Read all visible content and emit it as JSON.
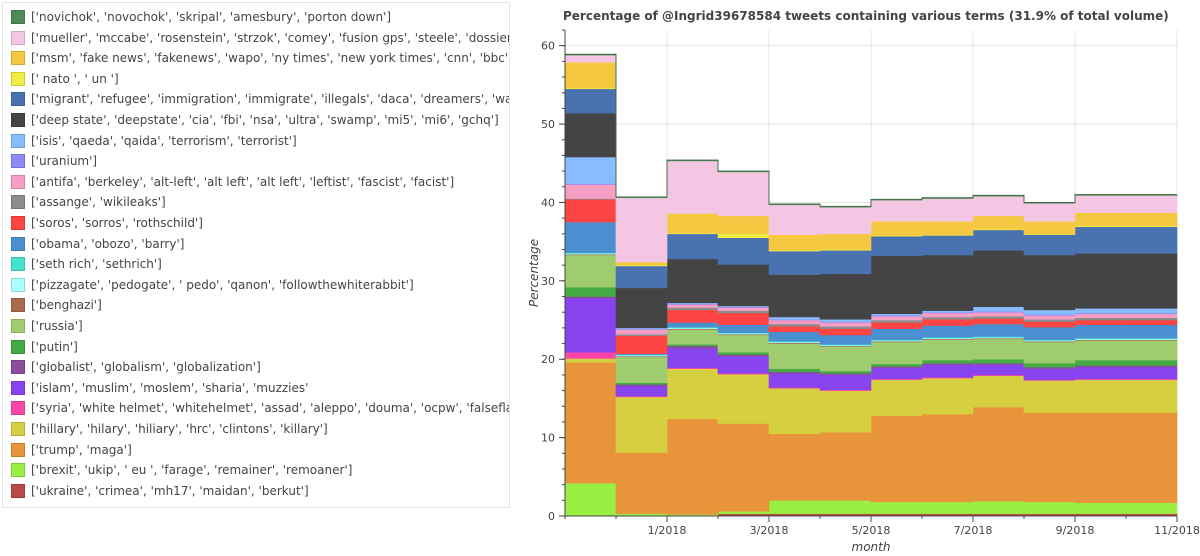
{
  "chart_data": {
    "type": "area",
    "title": "Percentage of @Ingrid39678584 tweets containing various terms (31.9% of total volume)",
    "xlabel": "month",
    "ylabel": "Percentage",
    "ylim": [
      0,
      62
    ],
    "xlim": [
      "2017-11",
      "2018-11"
    ],
    "yticks": [
      0,
      10,
      20,
      30,
      40,
      50,
      60
    ],
    "xticks": [
      {
        "month": "2018-01",
        "label": "1/2018"
      },
      {
        "month": "2018-03",
        "label": "3/2018"
      },
      {
        "month": "2018-05",
        "label": "5/2018"
      },
      {
        "month": "2018-07",
        "label": "7/2018"
      },
      {
        "month": "2018-09",
        "label": "9/2018"
      },
      {
        "month": "2018-11",
        "label": "11/2018"
      }
    ],
    "grid": true,
    "legend_placement": "left",
    "months": [
      "2017-11",
      "2017-12",
      "2018-01",
      "2018-02",
      "2018-03",
      "2018-04",
      "2018-05",
      "2018-06",
      "2018-07",
      "2018-08",
      "2018-09",
      "2018-10"
    ],
    "series": [
      {
        "name": "['ukraine', 'crimea', 'mh17', 'maidan', 'berkut']",
        "color": "#b94a48",
        "values": [
          0.1,
          0.1,
          0.1,
          0.3,
          0.3,
          0.3,
          0.3,
          0.3,
          0.3,
          0.3,
          0.3,
          0.3
        ]
      },
      {
        "name": "['brexit', 'ukip', ' eu ', 'farage', 'remainer', 'remoaner']",
        "color": "#99ee44",
        "values": [
          4.1,
          0.2,
          0.1,
          0.3,
          1.7,
          1.7,
          1.5,
          1.5,
          1.6,
          1.5,
          1.4,
          1.4
        ]
      },
      {
        "name": "['trump', 'maga']",
        "color": "#e8943a",
        "values": [
          15.4,
          7.8,
          12.2,
          11.2,
          8.5,
          8.7,
          11.0,
          11.2,
          12.0,
          11.4,
          11.5,
          11.5
        ]
      },
      {
        "name": "['hillary', 'hilary', 'hiliary', 'hrc', 'clintons', 'killary']",
        "color": "#d6d040",
        "values": [
          0.5,
          7.1,
          6.4,
          6.3,
          5.8,
          5.3,
          4.6,
          4.6,
          4.0,
          4.1,
          4.2,
          4.2
        ]
      },
      {
        "name": "['syria', 'white helmet', 'whitehelmet', 'assad', 'aleppo', 'douma', 'ocpw', 'falseflag', 'false fla",
        "color": "#ff44aa",
        "values": [
          0.8,
          0.1,
          0.1,
          0.1,
          0.1,
          0.1,
          0.1,
          0.1,
          0.1,
          0.1,
          0.1,
          0.1
        ]
      },
      {
        "name": "['islam', 'muslim', 'moslem', 'sharia', 'muzzies'",
        "color": "#8844ee",
        "values": [
          6.9,
          1.3,
          2.5,
          2.2,
          1.8,
          1.9,
          1.4,
          1.6,
          1.3,
          1.4,
          1.5,
          1.5
        ]
      },
      {
        "name": "['globalist', 'globalism', 'globalization']",
        "color": "#8a4c9c",
        "values": [
          0.2,
          0.2,
          0.3,
          0.2,
          0.2,
          0.2,
          0.2,
          0.2,
          0.2,
          0.2,
          0.2,
          0.2
        ]
      },
      {
        "name": "['putin']",
        "color": "#44aa44",
        "values": [
          1.2,
          0.2,
          0.2,
          0.3,
          0.4,
          0.3,
          0.3,
          0.4,
          0.5,
          0.5,
          0.7,
          0.7
        ]
      },
      {
        "name": "['russia']",
        "color": "#9fcc6e",
        "values": [
          4.1,
          3.3,
          1.9,
          2.2,
          3.2,
          3.1,
          2.8,
          2.6,
          2.6,
          2.7,
          2.5,
          2.5
        ]
      },
      {
        "name": "['benghazi']",
        "color": "#aa6a4e",
        "values": [
          0.1,
          0.1,
          0.1,
          0.1,
          0.1,
          0.1,
          0.1,
          0.1,
          0.1,
          0.1,
          0.1,
          0.1
        ]
      },
      {
        "name": "['pizzagate', 'pedogate', ' pedo', 'qanon', 'followthewhiterabbit']",
        "color": "#aaffff",
        "values": [
          0.1,
          0.1,
          0.1,
          0.1,
          0.1,
          0.1,
          0.1,
          0.1,
          0.1,
          0.1,
          0.1,
          0.1
        ]
      },
      {
        "name": "['seth rich', 'sethrich']",
        "color": "#44e0d0",
        "values": [
          0.1,
          0.1,
          0.1,
          0.1,
          0.1,
          0.1,
          0.1,
          0.1,
          0.1,
          0.1,
          0.1,
          0.1
        ]
      },
      {
        "name": "['obama', 'obozo', 'barry']",
        "color": "#4a90d0",
        "values": [
          3.9,
          0.1,
          0.6,
          1.0,
          1.2,
          1.2,
          1.4,
          1.5,
          1.6,
          1.6,
          1.7,
          1.7
        ]
      },
      {
        "name": "['soros', 'sorros', 'rothschild']",
        "color": "#ff4444",
        "values": [
          2.9,
          2.3,
          1.6,
          1.5,
          0.7,
          0.8,
          0.8,
          0.8,
          0.7,
          0.7,
          0.6,
          0.6
        ]
      },
      {
        "name": "['assange', 'wikileaks']",
        "color": "#8c8c8c",
        "values": [
          0.1,
          0.2,
          0.3,
          0.3,
          0.3,
          0.3,
          0.3,
          0.3,
          0.3,
          0.3,
          0.3,
          0.3
        ]
      },
      {
        "name": "['antifa', 'berkeley', 'alt-left', 'alt left', 'alt left', 'leftist', 'fascist', 'facist']",
        "color": "#f79ec4",
        "values": [
          1.8,
          0.6,
          0.4,
          0.4,
          0.5,
          0.5,
          0.5,
          0.5,
          0.5,
          0.5,
          0.5,
          0.5
        ]
      },
      {
        "name": "['uranium']",
        "color": "#8c88f8",
        "values": [
          0.1,
          0.1,
          0.1,
          0.1,
          0.1,
          0.1,
          0.1,
          0.1,
          0.1,
          0.1,
          0.1,
          0.1
        ]
      },
      {
        "name": "['isis', 'qaeda', 'qaida', 'terrorism', 'terrorist']",
        "color": "#88bbff",
        "values": [
          3.4,
          0.1,
          0.1,
          0.1,
          0.3,
          0.3,
          0.2,
          0.2,
          0.6,
          0.6,
          0.6,
          0.6
        ]
      },
      {
        "name": "['deep state', 'deepstate', 'cia', 'fbi', 'nsa', 'ultra', 'swamp', 'mi5', 'mi6', 'gchq']",
        "color": "#444444",
        "values": [
          5.6,
          5.1,
          5.6,
          5.3,
          5.4,
          5.8,
          7.4,
          7.1,
          7.2,
          7.0,
          7.0,
          7.0
        ]
      },
      {
        "name": "['migrant', 'refugee', 'immigration', 'immigrate', 'illegals', 'daca', 'dreamers', 'wall']",
        "color": "#4a72b0",
        "values": [
          3.1,
          2.8,
          3.2,
          3.4,
          3.0,
          3.0,
          2.5,
          2.5,
          2.6,
          2.6,
          3.4,
          3.4
        ]
      },
      {
        "name": "[' nato ', ' un ']",
        "color": "#eeee44",
        "values": [
          0.1,
          0.1,
          0.1,
          0.5,
          0.1,
          0.1,
          0.1,
          0.1,
          0.1,
          0.1,
          0.1,
          0.1
        ]
      },
      {
        "name": "['msm', 'fake news', 'fakenews', 'wapo', 'ny times', 'new york times', 'cnn', 'bbc', 'tapper']",
        "color": "#f5c842",
        "values": [
          3.3,
          0.4,
          2.5,
          2.3,
          2.0,
          2.0,
          1.8,
          1.7,
          1.7,
          1.6,
          1.7,
          1.7
        ]
      },
      {
        "name": "['mueller', 'mccabe', 'rosenstein', 'strzok', 'comey', 'fusion gps', 'steele', 'dossier']",
        "color": "#f5c6e4",
        "values": [
          0.9,
          8.2,
          6.7,
          5.6,
          3.8,
          3.4,
          2.7,
          2.9,
          2.5,
          2.3,
          2.2,
          2.2
        ]
      },
      {
        "name": "['novichok', 'novochok', 'skripal', 'amesbury', 'porton down']",
        "color": "#4e8a56",
        "values": [
          0.1,
          0.1,
          0.1,
          0.1,
          0.1,
          0.1,
          0.1,
          0.1,
          0.1,
          0.1,
          0.1,
          0.1
        ]
      }
    ]
  }
}
